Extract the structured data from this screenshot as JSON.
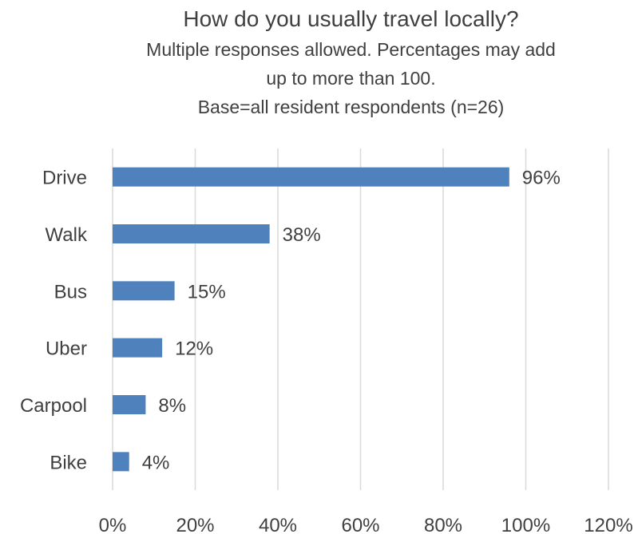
{
  "chart_data": {
    "type": "bar",
    "orientation": "horizontal",
    "title": "How do you usually travel locally?",
    "subtitle_lines": [
      "Multiple responses allowed. Percentages may add",
      "up to more than 100.",
      "Base=all resident respondents (n=26)"
    ],
    "categories": [
      "Drive",
      "Walk",
      "Bus",
      "Uber",
      "Carpool",
      "Bike"
    ],
    "values": [
      96,
      38,
      15,
      12,
      8,
      4
    ],
    "data_labels": [
      "96%",
      "38%",
      "15%",
      "12%",
      "8%",
      "4%"
    ],
    "xlim": [
      0,
      120
    ],
    "x_ticks": [
      0,
      20,
      40,
      60,
      80,
      100,
      120
    ],
    "x_tick_labels": [
      "0%",
      "20%",
      "40%",
      "60%",
      "80%",
      "100%",
      "120%"
    ],
    "xlabel": "",
    "ylabel": "",
    "grid": true,
    "legend": "none",
    "bar_color": "#4f81bd",
    "grid_color": "#d9d9d9",
    "text_color": "#404040"
  }
}
